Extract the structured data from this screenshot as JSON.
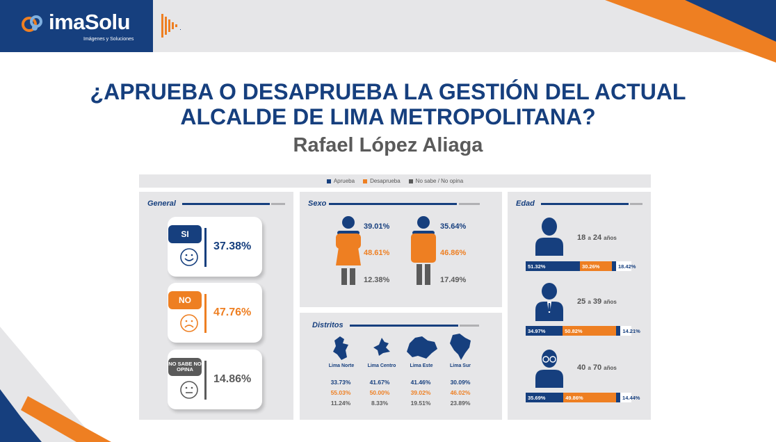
{
  "brand": {
    "name": "imaSolu",
    "tagline": "Imágenes y Soluciones"
  },
  "title": {
    "line1": "¿APRUEBA O DESAPRUEBA LA GESTIÓN DEL ACTUAL",
    "line2": "ALCALDE DE LIMA METROPOLITANA?",
    "subject": "Rafael López Aliaga"
  },
  "colors": {
    "aprueba": "#163f7e",
    "desaprueba": "#ee7f22",
    "no_opina": "#5a5a5a"
  },
  "legend": [
    "Aprueba",
    "Desaprueba",
    "No sabe / No opina"
  ],
  "general": {
    "title": "General",
    "items": [
      {
        "tag": "SI",
        "face": "happy-face-icon",
        "value": "37.38%"
      },
      {
        "tag": "NO",
        "face": "sad-face-icon",
        "value": "47.76%"
      },
      {
        "tag": "NO SABE NO OPINA",
        "face": "neutral-face-icon",
        "value": "14.86%"
      }
    ]
  },
  "sexo": {
    "title": "Sexo",
    "mujer": [
      "39.01%",
      "48.61%",
      "12.38%"
    ],
    "hombre": [
      "35.64%",
      "46.86%",
      "17.49%"
    ]
  },
  "distritos": {
    "title": "Distritos",
    "items": [
      {
        "name": "Lima Norte",
        "values": [
          "33.73%",
          "55.03%",
          "11.24%"
        ]
      },
      {
        "name": "Lima Centro",
        "values": [
          "41.67%",
          "50.00%",
          "8.33%"
        ]
      },
      {
        "name": "Lima Este",
        "values": [
          "41.46%",
          "39.02%",
          "19.51%"
        ]
      },
      {
        "name": "Lima Sur",
        "values": [
          "30.09%",
          "46.02%",
          "23.89%"
        ]
      }
    ]
  },
  "edad": {
    "title": "Edad",
    "groups": [
      {
        "from": "18",
        "sep": "a",
        "to": "24",
        "unit": "años",
        "values": [
          "51.32%",
          "30.26%",
          "18.42%"
        ]
      },
      {
        "from": "25",
        "sep": "a",
        "to": "39",
        "unit": "años",
        "values": [
          "34.97%",
          "50.82%",
          "14.21%"
        ]
      },
      {
        "from": "40",
        "sep": "a",
        "to": "70",
        "unit": "años",
        "values": [
          "35.69%",
          "49.86%",
          "14.44%"
        ]
      }
    ]
  },
  "chart_data": [
    {
      "type": "bar",
      "categories": [
        "Aprueba",
        "Desaprueba",
        "No sabe / No opina"
      ],
      "values": [
        37.38,
        47.76,
        14.86
      ],
      "title": "General"
    },
    {
      "type": "bar",
      "categories": [
        "Aprueba",
        "Desaprueba",
        "No sabe / No opina"
      ],
      "series": [
        {
          "values": [
            39.01,
            48.61,
            12.38
          ]
        },
        {
          "values": [
            35.64,
            46.86,
            17.49
          ]
        }
      ],
      "title": "Sexo"
    },
    {
      "type": "bar",
      "categories": [
        "Lima Norte",
        "Lima Centro",
        "Lima Este",
        "Lima Sur"
      ],
      "series": [
        {
          "name": "Aprueba",
          "values": [
            33.73,
            41.67,
            41.46,
            30.09
          ]
        },
        {
          "name": "Desaprueba",
          "values": [
            55.03,
            50.0,
            39.02,
            46.02
          ]
        },
        {
          "name": "No sabe / No opina",
          "values": [
            11.24,
            8.33,
            19.51,
            23.89
          ]
        }
      ],
      "title": "Distritos"
    },
    {
      "type": "bar",
      "categories": [
        "18 a 24 años",
        "25 a 39 años",
        "40 a 70 años"
      ],
      "series": [
        {
          "name": "Aprueba",
          "values": [
            51.32,
            34.97,
            35.69
          ]
        },
        {
          "name": "Desaprueba",
          "values": [
            30.26,
            50.82,
            49.86
          ]
        },
        {
          "name": "No sabe / No opina",
          "values": [
            18.42,
            14.21,
            14.44
          ]
        }
      ],
      "title": "Edad"
    }
  ]
}
